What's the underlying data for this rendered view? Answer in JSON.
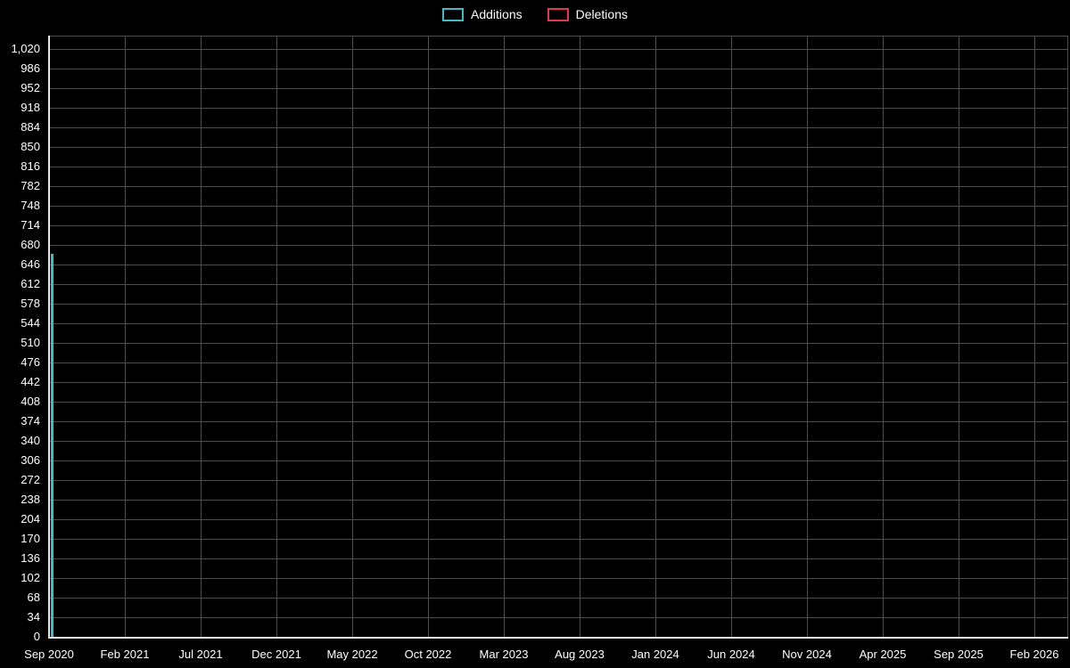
{
  "chart_data": {
    "type": "bar",
    "title": "",
    "xlabel": "",
    "ylabel": "",
    "background": "#000000",
    "grid": true,
    "grid_color": "#4f4f4f",
    "axis_color": "#e8e8e8",
    "legend_position": "top-center",
    "ylim": [
      0,
      1020
    ],
    "y_ticks": [
      0,
      34,
      68,
      102,
      136,
      170,
      204,
      238,
      272,
      306,
      340,
      374,
      408,
      442,
      476,
      510,
      544,
      578,
      612,
      646,
      680,
      714,
      748,
      782,
      816,
      850,
      884,
      918,
      952,
      986,
      1020
    ],
    "y_tick_labels": [
      "0",
      "34",
      "68",
      "102",
      "136",
      "170",
      "204",
      "238",
      "272",
      "306",
      "340",
      "374",
      "408",
      "442",
      "476",
      "510",
      "544",
      "578",
      "612",
      "646",
      "680",
      "714",
      "748",
      "782",
      "816",
      "850",
      "884",
      "918",
      "952",
      "986",
      "1,020"
    ],
    "x_tick_labels": [
      "Sep 2020",
      "Feb 2021",
      "Jul 2021",
      "Dec 2021",
      "May 2022",
      "Oct 2022",
      "Mar 2023",
      "Aug 2023",
      "Jan 2024",
      "Jun 2024",
      "Nov 2024",
      "Apr 2025",
      "Sep 2025",
      "Feb 2026"
    ],
    "series": [
      {
        "name": "Additions",
        "color": "#45b8c8",
        "points": [
          {
            "x": "Sep 2020",
            "y": 665
          }
        ]
      },
      {
        "name": "Deletions",
        "color": "#e0384e",
        "points": [
          {
            "x": "Sep 2020",
            "y": 0
          }
        ]
      }
    ]
  }
}
